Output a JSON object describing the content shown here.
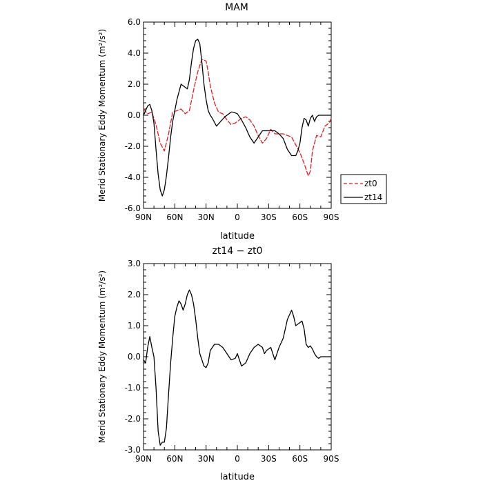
{
  "chart_data": [
    {
      "type": "line",
      "title": "MAM",
      "xlabel": "latitude",
      "ylabel": "Merid  Stationary  Eddy  Momentum  (m²/s²)",
      "xlim": [
        90,
        -90
      ],
      "ylim": [
        -6.0,
        6.0
      ],
      "xticks": [
        90,
        60,
        30,
        0,
        -30,
        -60,
        -90
      ],
      "xtick_labels": [
        "90N",
        "60N",
        "30N",
        "0",
        "30S",
        "60S",
        "90S"
      ],
      "yticks": [
        -6,
        -4,
        -2,
        0,
        2,
        4,
        6
      ],
      "ytick_labels": [
        "-6.0",
        "-4.0",
        "-2.0",
        "0.0",
        "2.0",
        "4.0",
        "6.0"
      ],
      "legend_position": "outside-right",
      "grid": false,
      "series": [
        {
          "name": "zt0",
          "color": "#e8191c",
          "style": "dashed",
          "x": [
            90,
            86,
            82,
            78,
            74,
            70,
            66,
            62,
            58,
            54,
            50,
            46,
            42,
            38,
            34,
            30,
            28,
            26,
            22,
            18,
            14,
            10,
            6,
            2,
            0,
            -4,
            -8,
            -12,
            -16,
            -20,
            -24,
            -28,
            -32,
            -36,
            -40,
            -44,
            -48,
            -52,
            -56,
            -60,
            -64,
            -68,
            -70,
            -72,
            -76,
            -80,
            -84,
            -88,
            -90
          ],
          "y": [
            0.4,
            0.1,
            0.2,
            -0.6,
            -1.8,
            -2.3,
            -1.2,
            0.2,
            0.3,
            0.4,
            0.1,
            0.3,
            1.6,
            2.8,
            3.6,
            3.5,
            2.8,
            1.9,
            0.8,
            0.2,
            0.1,
            -0.3,
            -0.6,
            -0.5,
            -0.4,
            -0.2,
            -0.1,
            -0.3,
            -0.7,
            -1.3,
            -1.8,
            -1.5,
            -0.9,
            -1.2,
            -1.2,
            -1.2,
            -1.3,
            -1.4,
            -1.9,
            -2.4,
            -3.1,
            -3.9,
            -3.6,
            -2.3,
            -1.3,
            -1.4,
            -0.7,
            -0.5,
            -0.2
          ]
        },
        {
          "name": "zt14",
          "color": "#000000",
          "style": "solid",
          "x": [
            90,
            88,
            86,
            84,
            82,
            80,
            78,
            76,
            74,
            72,
            70,
            68,
            66,
            64,
            62,
            58,
            54,
            50,
            48,
            46,
            44,
            42,
            40,
            38,
            36,
            34,
            32,
            30,
            28,
            26,
            24,
            20,
            16,
            12,
            8,
            6,
            4,
            0,
            -4,
            -8,
            -12,
            -16,
            -20,
            -24,
            -28,
            -32,
            -36,
            -40,
            -44,
            -48,
            -52,
            -56,
            -58,
            -60,
            -62,
            -64,
            -66,
            -68,
            -70,
            -72,
            -74,
            -76,
            -78,
            -80,
            -82,
            -84,
            -86,
            -88,
            -90
          ],
          "y": [
            0.0,
            0.3,
            0.6,
            0.7,
            0.3,
            -0.5,
            -2.2,
            -3.8,
            -4.8,
            -5.2,
            -4.8,
            -3.9,
            -2.7,
            -1.4,
            -0.4,
            1.0,
            2.0,
            1.8,
            1.7,
            2.3,
            3.4,
            4.3,
            4.8,
            4.9,
            4.6,
            3.4,
            2.0,
            1.0,
            0.3,
            0.0,
            -0.2,
            -0.7,
            -0.4,
            -0.1,
            0.1,
            0.2,
            0.2,
            0.1,
            -0.3,
            -0.8,
            -1.4,
            -1.8,
            -1.4,
            -1.0,
            -1.0,
            -1.0,
            -1.0,
            -1.2,
            -1.5,
            -2.2,
            -2.6,
            -2.6,
            -2.3,
            -1.8,
            -0.8,
            -0.2,
            -0.3,
            -0.7,
            -0.2,
            0.0,
            -0.4,
            -0.1,
            0.0,
            0.0,
            0.0,
            0.0,
            0.0,
            0.0,
            0.0
          ]
        }
      ]
    },
    {
      "type": "line",
      "title": "zt14  −  zt0",
      "xlabel": "latitude",
      "ylabel": "Merid  Stationary  Eddy  Momentum  (m²/s²)",
      "xlim": [
        90,
        -90
      ],
      "ylim": [
        -3.0,
        3.0
      ],
      "xticks": [
        90,
        60,
        30,
        0,
        -30,
        -60,
        -90
      ],
      "xtick_labels": [
        "90N",
        "60N",
        "30N",
        "0",
        "30S",
        "60S",
        "90S"
      ],
      "yticks": [
        -3,
        -2,
        -1,
        0,
        1,
        2,
        3
      ],
      "ytick_labels": [
        "-3.0",
        "-2.0",
        "-1.0",
        "0.0",
        "1.0",
        "2.0",
        "3.0"
      ],
      "grid": false,
      "series": [
        {
          "color": "#000000",
          "style": "solid",
          "x": [
            90,
            88,
            86,
            84,
            82,
            80,
            78,
            76,
            74,
            72,
            70,
            68,
            66,
            64,
            62,
            60,
            58,
            56,
            54,
            52,
            50,
            48,
            46,
            44,
            42,
            40,
            38,
            36,
            34,
            32,
            30,
            28,
            26,
            22,
            18,
            14,
            10,
            6,
            2,
            0,
            -4,
            -8,
            -12,
            -16,
            -20,
            -24,
            -26,
            -28,
            -32,
            -36,
            -40,
            -44,
            -48,
            -52,
            -54,
            -56,
            -60,
            -62,
            -64,
            -66,
            -68,
            -70,
            -72,
            -74,
            -76,
            -78,
            -80,
            -82,
            -84,
            -86,
            -88,
            -90
          ],
          "y": [
            -0.1,
            -0.2,
            0.3,
            0.65,
            0.3,
            0.0,
            -1.0,
            -2.4,
            -2.85,
            -2.75,
            -2.75,
            -2.3,
            -1.2,
            -0.2,
            0.6,
            1.3,
            1.6,
            1.8,
            1.7,
            1.5,
            1.7,
            2.0,
            2.15,
            2.0,
            1.7,
            1.2,
            0.6,
            0.1,
            -0.1,
            -0.3,
            -0.35,
            -0.2,
            0.2,
            0.4,
            0.4,
            0.3,
            0.1,
            -0.1,
            -0.05,
            0.1,
            -0.3,
            -0.2,
            0.1,
            0.3,
            0.4,
            0.3,
            0.1,
            0.2,
            0.3,
            -0.1,
            0.3,
            0.6,
            1.2,
            1.5,
            1.3,
            1.0,
            1.1,
            1.15,
            0.9,
            0.4,
            0.3,
            0.35,
            0.25,
            0.1,
            0.0,
            -0.05,
            0.0,
            0.0,
            0.0,
            0.0,
            0.0,
            0.0
          ]
        }
      ]
    }
  ]
}
